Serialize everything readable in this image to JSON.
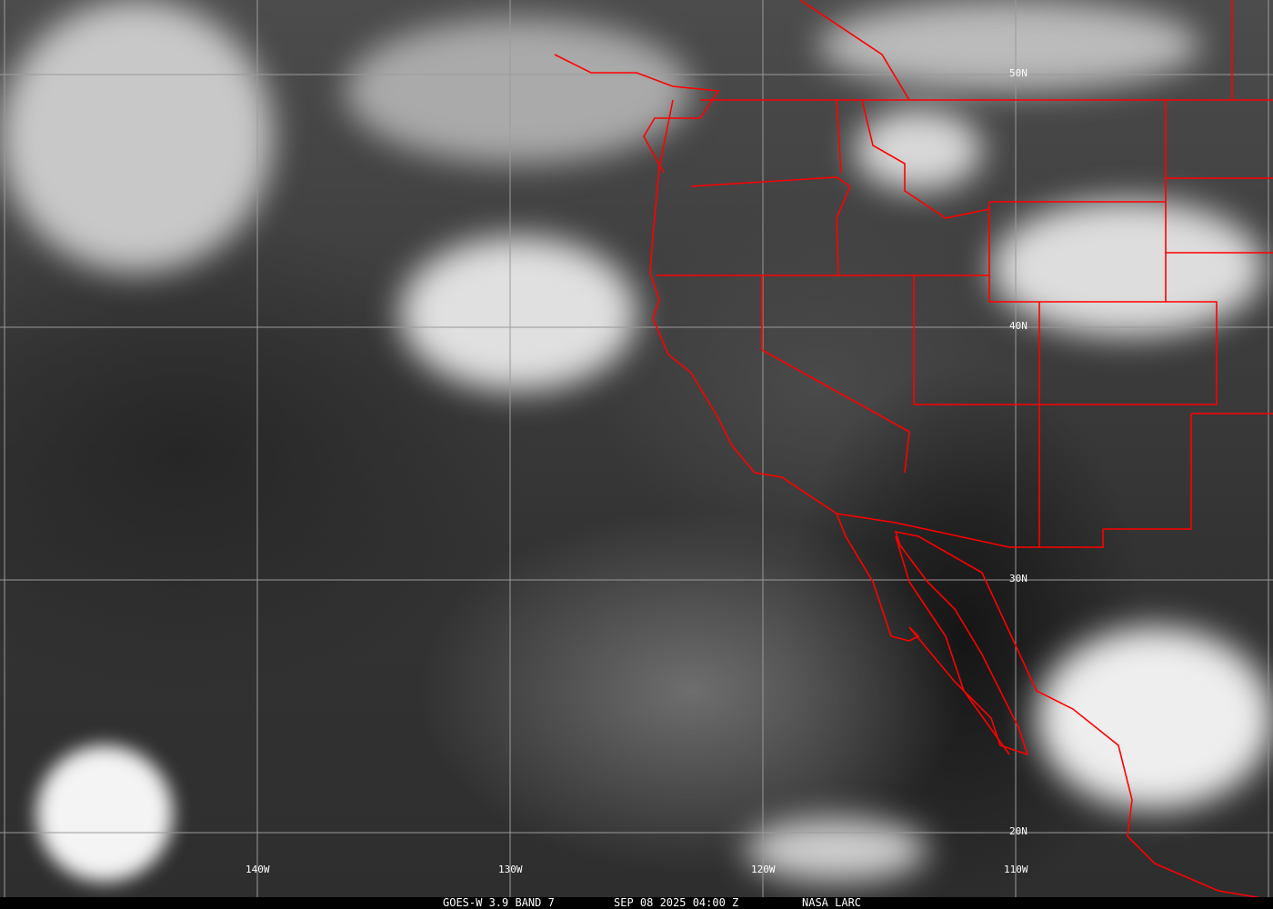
{
  "caption": {
    "satellite": "GOES-W 3.9 BAND 7",
    "datetime": "SEP 08 2025 04:00 Z",
    "source": "NASA LARC"
  },
  "grid": {
    "latitude_labels": [
      "50N",
      "40N",
      "30N",
      "20N"
    ],
    "longitude_labels": [
      "140W",
      "130W",
      "120W",
      "110W"
    ]
  },
  "colors": {
    "boundaries": "#ff0000",
    "gridlines": "#9a9a9a"
  }
}
